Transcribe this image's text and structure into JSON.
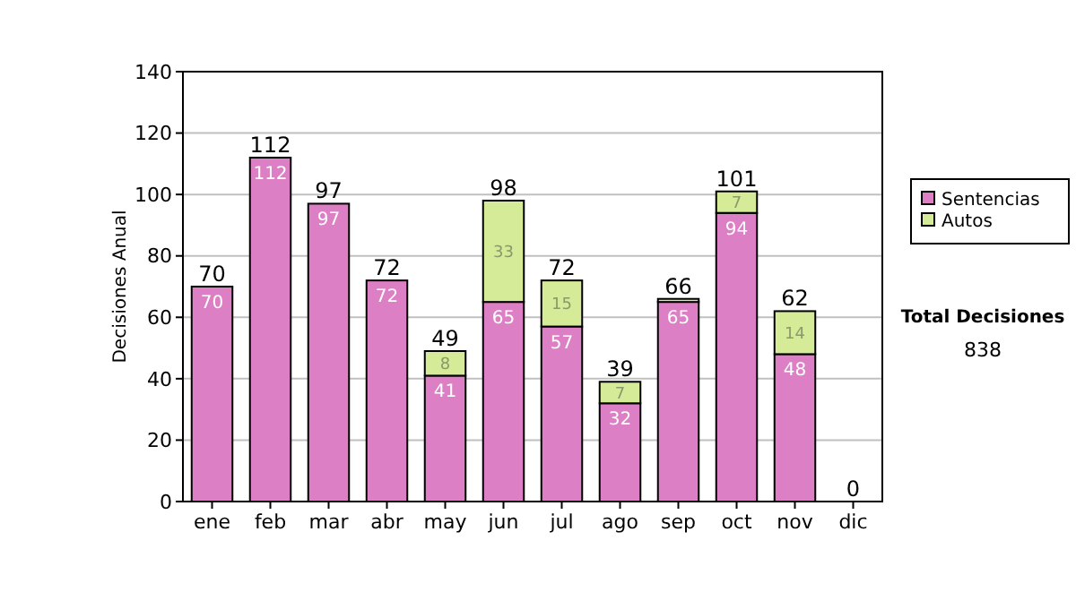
{
  "chart_data": {
    "type": "bar",
    "stacked": true,
    "ylabel": "Decisiones Anual",
    "categories": [
      "ene",
      "feb",
      "mar",
      "abr",
      "may",
      "jun",
      "jul",
      "ago",
      "sep",
      "oct",
      "nov",
      "dic"
    ],
    "series": [
      {
        "name": "Sentencias",
        "color": "#dd7fc4",
        "values": [
          70,
          112,
          97,
          72,
          41,
          65,
          57,
          32,
          65,
          94,
          48,
          0
        ],
        "value_labels": [
          "70",
          "112",
          "97",
          "72",
          "41",
          "65",
          "57",
          "32",
          "65",
          "94",
          "48",
          null
        ]
      },
      {
        "name": "Autos",
        "color": "#d6eb98",
        "values": [
          0,
          0,
          0,
          0,
          8,
          33,
          15,
          7,
          1,
          7,
          14,
          0
        ],
        "value_labels": [
          null,
          null,
          null,
          null,
          "8",
          "33",
          "15",
          "7",
          null,
          "7",
          "14",
          null
        ]
      }
    ],
    "totals": [
      "70",
      "112",
      "97",
      "72",
      "49",
      "98",
      "72",
      "39",
      "66",
      "101",
      "62",
      "0"
    ],
    "ylim": [
      0,
      140
    ],
    "yticks": [
      0,
      20,
      40,
      60,
      80,
      100,
      120,
      140
    ],
    "grid": "y",
    "legend": "right",
    "annotations": [
      "Total Decisiones",
      "838"
    ]
  }
}
